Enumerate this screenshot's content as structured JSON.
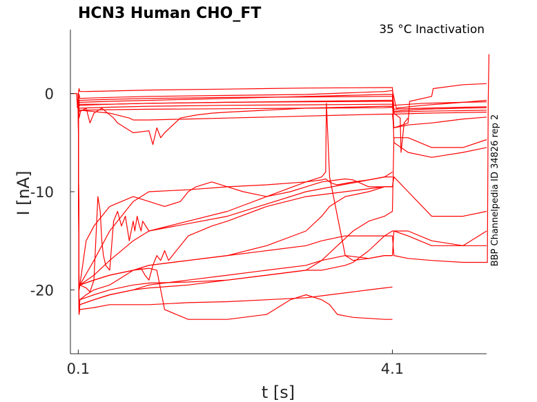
{
  "chart_data": {
    "type": "line",
    "title": "HCN3  Human  CHO_FT",
    "subtitle": "35 °C  Inactivation",
    "side_label": "BBP Channelpedia ID 34826 rep 2",
    "xlabel": "t [s]",
    "ylabel": "I [nA]",
    "x_ticks": [
      {
        "value": 0.1,
        "label": "0.1"
      },
      {
        "value": 4.1,
        "label": "4.1"
      }
    ],
    "y_ticks": [
      {
        "value": 0,
        "label": "0"
      },
      {
        "value": -10,
        "label": "-10"
      },
      {
        "value": -20,
        "label": "-20"
      }
    ],
    "xlim": [
      0.0,
      5.3
    ],
    "ylim": [
      -26.5,
      6.5
    ],
    "grid": false,
    "line_color": "#ff0000",
    "series": [
      {
        "x": [
          0.0,
          0.08,
          0.09,
          0.1,
          0.11,
          0.12,
          0.5,
          1.0,
          2.0,
          3.0,
          4.0,
          4.1,
          4.15,
          4.5,
          5.0,
          5.3
        ],
        "y": [
          0.0,
          0.0,
          -1.5,
          0.0,
          -0.1,
          -0.5,
          -0.4,
          -0.3,
          -0.2,
          -0.1,
          0.2,
          0.3,
          -1.5,
          -1.2,
          -0.9,
          -0.7
        ]
      },
      {
        "x": [
          0.1,
          0.11,
          0.12,
          0.2,
          0.5,
          1.0,
          2.0,
          3.0,
          4.0,
          4.1,
          4.12,
          4.5,
          5.0,
          5.3
        ],
        "y": [
          0.0,
          0.5,
          0.2,
          0.2,
          0.25,
          0.35,
          0.45,
          0.55,
          0.6,
          0.6,
          -1.8,
          -1.6,
          -1.5,
          -1.45
        ]
      },
      {
        "x": [
          0.1,
          0.11,
          0.12,
          0.5,
          1.0,
          2.0,
          3.0,
          4.0,
          4.1,
          4.12,
          4.5,
          5.0,
          5.3
        ],
        "y": [
          0.0,
          -0.8,
          -0.7,
          -0.6,
          -0.5,
          -0.4,
          -0.35,
          -0.3,
          -0.3,
          -1.2,
          -1.0,
          -0.9,
          -0.85
        ]
      },
      {
        "x": [
          0.1,
          0.11,
          0.12,
          0.5,
          1.0,
          1.5,
          2.0,
          3.0,
          4.0,
          4.1,
          4.12,
          4.5,
          5.0,
          5.3
        ],
        "y": [
          0.0,
          -1.2,
          -1.1,
          -1.1,
          -1.0,
          -0.95,
          -0.9,
          -0.85,
          -0.8,
          -0.8,
          -1.6,
          -1.5,
          -1.4,
          -1.35
        ]
      },
      {
        "x": [
          0.1,
          0.11,
          0.12,
          0.5,
          1.0,
          2.0,
          3.0,
          4.0,
          4.1,
          4.12,
          4.5,
          5.0,
          5.3
        ],
        "y": [
          0.0,
          -1.6,
          -1.5,
          -1.4,
          -1.3,
          -1.2,
          -1.15,
          -1.1,
          -1.1,
          -1.9,
          -1.8,
          -1.75,
          -1.7
        ]
      },
      {
        "x": [
          0.1,
          0.11,
          0.12,
          0.5,
          1.0,
          2.0,
          3.0,
          4.0,
          4.1,
          4.12,
          4.5,
          5.0,
          5.3
        ],
        "y": [
          0.0,
          -1.9,
          -1.7,
          -1.65,
          -1.6,
          -1.55,
          -1.5,
          -1.45,
          -1.4,
          -2.1,
          -2.0,
          -1.95,
          -1.9
        ]
      },
      {
        "x": [
          0.1,
          0.11,
          0.12,
          0.5,
          0.75,
          0.8,
          1.0,
          1.5,
          2.0,
          2.5,
          3.0,
          3.5,
          4.0,
          4.1,
          4.12,
          4.3,
          4.32,
          4.6,
          4.62,
          5.0,
          5.3
        ],
        "y": [
          0.0,
          -1.8,
          -1.7,
          -2.0,
          -2.5,
          -2.7,
          -2.7,
          -2.6,
          -2.5,
          -2.4,
          -2.3,
          -2.2,
          -2.1,
          -2.1,
          -3.5,
          -3.0,
          -0.8,
          -0.3,
          0.5,
          0.9,
          1.0
        ]
      },
      {
        "x": [
          0.1,
          0.11,
          0.13,
          0.2,
          0.25,
          0.3,
          0.4,
          0.55,
          0.6,
          0.7,
          0.8,
          1.0,
          1.05,
          1.1,
          1.15,
          1.2,
          1.4,
          1.6,
          1.8,
          2.0,
          2.5,
          3.0,
          3.5,
          4.0,
          4.1,
          4.12,
          4.2,
          4.21,
          4.25,
          4.3
        ],
        "y": [
          0.0,
          -2.5,
          -1.8,
          -1.5,
          -3.0,
          -2.0,
          -1.5,
          -2.5,
          -3.0,
          -3.5,
          -4.0,
          -3.8,
          -5.2,
          -3.5,
          -4.5,
          -4.0,
          -2.5,
          -2.2,
          -2.0,
          -1.9,
          -1.7,
          -1.5,
          -1.4,
          -1.3,
          -1.3,
          -2.0,
          -2.5,
          -6.0,
          -3.0,
          -2.5
        ]
      },
      {
        "x": [
          0.1,
          0.11,
          0.12,
          0.2,
          0.25,
          0.3,
          0.35,
          0.38,
          0.4,
          0.42,
          0.45,
          0.5,
          0.55,
          0.6,
          0.65,
          0.7,
          0.75,
          0.8,
          0.82,
          0.85,
          0.88,
          0.9,
          0.92,
          1.0,
          2.0,
          3.0,
          4.0,
          4.1
        ],
        "y": [
          0.0,
          -20.0,
          -19.5,
          -19.8,
          -20.2,
          -19.0,
          -10.5,
          -12.0,
          -15.0,
          -16.5,
          -17.5,
          -18.0,
          -13.0,
          -12.0,
          -13.5,
          -12.5,
          -15.0,
          -13.0,
          -14.0,
          -12.5,
          -13.5,
          -14.0,
          -13.0,
          -14.0,
          -12.5,
          -10.0,
          -8.5,
          -8.0
        ]
      },
      {
        "x": [
          0.1,
          0.11,
          0.12,
          0.2,
          0.3,
          0.5,
          0.8,
          1.0,
          1.2,
          1.4,
          1.5,
          1.6,
          1.8,
          2.0,
          2.2,
          2.5,
          2.8,
          3.0,
          3.2,
          3.4,
          3.5,
          3.6,
          3.8,
          4.0,
          4.1
        ],
        "y": [
          0.0,
          -20.0,
          -19.5,
          -15.0,
          -13.5,
          -11.5,
          -10.5,
          -11.0,
          -11.5,
          -11.0,
          -10.0,
          -9.5,
          -9.0,
          -9.5,
          -10.0,
          -10.5,
          -10.0,
          -9.5,
          -9.0,
          -8.8,
          -8.7,
          -8.8,
          -9.5,
          -9.5,
          -9.5
        ]
      },
      {
        "x": [
          0.1,
          0.11,
          0.12,
          0.3,
          0.5,
          0.8,
          1.0,
          1.5,
          2.0,
          2.5,
          3.0,
          3.2,
          3.25,
          3.3,
          3.35,
          3.4,
          3.6,
          3.8,
          4.0,
          4.1
        ],
        "y": [
          0.0,
          -20.0,
          -19.5,
          -17.0,
          -14.0,
          -11.0,
          -10.0,
          -9.8,
          -9.5,
          -9.3,
          -9.0,
          -8.8,
          -8.7,
          -9.0,
          -9.2,
          -9.3,
          -9.0,
          -8.8,
          -8.5,
          -8.5
        ]
      },
      {
        "x": [
          0.1,
          0.11,
          0.12,
          0.3,
          0.5,
          0.8,
          1.0,
          1.5,
          2.0,
          2.5,
          3.0,
          3.2,
          3.4,
          3.6,
          3.8,
          4.0,
          4.1,
          4.12,
          4.3,
          4.6,
          5.0,
          5.3
        ],
        "y": [
          0.0,
          -22.5,
          -21.5,
          -21.0,
          -20.5,
          -20.0,
          -19.8,
          -19.5,
          -19.0,
          -18.5,
          -18.0,
          -17.0,
          -15.5,
          -14.0,
          -13.0,
          -12.5,
          -12.0,
          -4.5,
          -4.5,
          -5.5,
          -5.5,
          -4.7
        ]
      },
      {
        "x": [
          0.1,
          0.11,
          0.12,
          0.3,
          0.5,
          0.8,
          1.0,
          1.5,
          2.0,
          2.5,
          3.0,
          3.2,
          3.5,
          3.8,
          4.0,
          4.1
        ],
        "y": [
          0.0,
          -22.0,
          -21.5,
          -21.0,
          -20.5,
          -20.0,
          -19.5,
          -19.0,
          -18.5,
          -18.0,
          -17.5,
          -17.0,
          -16.5,
          -16.8,
          -16.5,
          -16.5
        ]
      },
      {
        "x": [
          0.1,
          0.11,
          0.12,
          0.3,
          0.5,
          0.8,
          1.0,
          1.5,
          2.0,
          2.5,
          3.0,
          3.2,
          3.5,
          3.6,
          3.8,
          4.0,
          4.1,
          4.12,
          4.3,
          4.6,
          5.0,
          5.3
        ],
        "y": [
          0.0,
          -22.0,
          -21.0,
          -20.5,
          -20.0,
          -19.5,
          -19.3,
          -19.2,
          -19.0,
          -18.5,
          -18.0,
          -18.0,
          -17.5,
          -17.2,
          -16.0,
          -14.5,
          -14.0,
          -14.0,
          -14.5,
          -15.5,
          -15.5,
          -14.0
        ]
      },
      {
        "x": [
          0.1,
          0.11,
          0.12,
          0.2,
          0.3,
          0.5,
          0.6,
          0.7,
          0.8,
          0.9,
          0.95,
          1.0,
          1.05,
          1.1,
          1.15,
          1.2,
          1.25,
          1.3,
          1.5,
          1.8,
          2.0,
          2.5,
          3.0,
          3.5,
          4.0,
          4.1
        ],
        "y": [
          0.0,
          -22.0,
          -21.0,
          -20.5,
          -20.0,
          -19.5,
          -19.0,
          -18.5,
          -18.0,
          -17.8,
          -18.5,
          -19.0,
          -17.5,
          -16.5,
          -17.0,
          -16.0,
          -17.0,
          -16.5,
          -14.5,
          -13.5,
          -13.0,
          -11.5,
          -10.5,
          -10.0,
          -9.5,
          -9.5
        ]
      },
      {
        "x": [
          0.1,
          0.11,
          0.12,
          0.3,
          0.5,
          0.8,
          1.0,
          1.5,
          2.0,
          2.5,
          3.0,
          3.2,
          3.4,
          3.6,
          3.8,
          4.0,
          4.1
        ],
        "y": [
          0.0,
          -22.5,
          -22.0,
          -21.8,
          -21.5,
          -21.5,
          -21.5,
          -21.3,
          -21.2,
          -21.0,
          -20.8,
          -20.6,
          -20.4,
          -20.2,
          -20.0,
          -19.8,
          -19.7
        ]
      },
      {
        "x": [
          0.1,
          0.11,
          0.12,
          0.3,
          0.5,
          0.8,
          1.0,
          1.1,
          1.15,
          1.2,
          1.5,
          2.0,
          2.5,
          2.8,
          3.0,
          3.2,
          3.3,
          3.4,
          3.6,
          3.8,
          4.0,
          4.1
        ],
        "y": [
          0.0,
          -20.0,
          -19.5,
          -19.0,
          -18.5,
          -18.0,
          -17.8,
          -18.0,
          -20.0,
          -22.0,
          -23.0,
          -23.0,
          -22.5,
          -21.0,
          -20.5,
          -21.0,
          -21.5,
          -22.5,
          -22.8,
          -22.9,
          -23.0,
          -23.0
        ]
      },
      {
        "x": [
          0.1,
          0.11,
          0.12,
          0.3,
          0.5,
          0.8,
          1.0,
          1.5,
          2.0,
          2.5,
          3.0,
          3.2,
          3.25,
          3.26,
          3.3,
          3.5,
          3.6,
          3.8,
          4.0,
          4.1,
          4.12,
          4.3,
          4.6,
          5.0,
          5.3
        ],
        "y": [
          0.0,
          -20.0,
          -19.5,
          -18.5,
          -17.0,
          -15.0,
          -14.0,
          -13.0,
          -12.0,
          -10.5,
          -9.0,
          -8.5,
          -8.0,
          -1.0,
          -8.5,
          -16.5,
          -17.0,
          -16.8,
          -16.5,
          -16.5,
          -14.0,
          -14.0,
          -15.0,
          -15.5,
          -15.5
        ]
      },
      {
        "x": [
          0.1,
          0.11,
          0.12,
          0.3,
          0.5,
          0.8,
          1.0,
          1.5,
          2.0,
          2.5,
          3.0,
          3.2,
          3.3,
          3.4,
          3.5,
          3.8,
          4.0,
          4.1,
          4.12,
          4.3,
          4.6,
          5.0,
          5.3
        ],
        "y": [
          0.0,
          -20.0,
          -19.5,
          -19.0,
          -18.5,
          -18.0,
          -17.5,
          -17.0,
          -16.5,
          -15.5,
          -14.0,
          -12.5,
          -11.5,
          -11.0,
          -10.5,
          -10.0,
          -9.5,
          -9.5,
          -8.5,
          -10.0,
          -12.5,
          -12.5,
          -12.0
        ]
      },
      {
        "x": [
          0.1,
          0.11,
          0.12,
          0.3,
          0.5,
          0.8,
          1.0,
          1.5,
          2.0,
          2.5,
          3.0,
          3.2,
          3.5,
          3.8,
          4.0,
          4.1,
          4.12,
          4.3,
          4.6,
          5.0,
          5.3
        ],
        "y": [
          0.0,
          -20.0,
          -19.5,
          -19.0,
          -18.5,
          -18.0,
          -17.5,
          -17.0,
          -16.5,
          -16.0,
          -15.5,
          -15.0,
          -14.5,
          -14.5,
          -14.5,
          -14.5,
          -16.5,
          -16.8,
          -17.0,
          -17.2,
          -17.2
        ]
      },
      {
        "x": [
          0.1,
          0.11,
          0.12,
          0.5,
          1.0,
          1.5,
          2.0,
          2.5,
          3.0,
          3.5,
          4.0,
          4.1,
          4.12,
          4.3,
          4.6,
          5.0,
          5.3
        ],
        "y": [
          0.0,
          -1.0,
          -0.9,
          -0.8,
          -0.7,
          -0.6,
          -0.5,
          -0.4,
          -0.3,
          -0.2,
          -0.1,
          -0.1,
          -5.0,
          -6.0,
          -6.5,
          -6.0,
          -5.5
        ]
      },
      {
        "x": [
          0.1,
          0.11,
          0.12,
          0.5,
          1.0,
          2.0,
          3.0,
          4.0,
          4.1,
          4.12,
          4.3,
          4.6,
          5.0,
          5.3
        ],
        "y": [
          0.0,
          -1.3,
          -1.2,
          -1.1,
          -1.0,
          -0.9,
          -0.8,
          -0.7,
          -0.7,
          -3.5,
          -3.2,
          -3.0,
          -2.6,
          -2.4
        ]
      },
      {
        "x": [
          5.3,
          5.31,
          5.32,
          5.33
        ],
        "y": [
          -17.2,
          -17.2,
          -1.0,
          4.0
        ]
      }
    ]
  }
}
